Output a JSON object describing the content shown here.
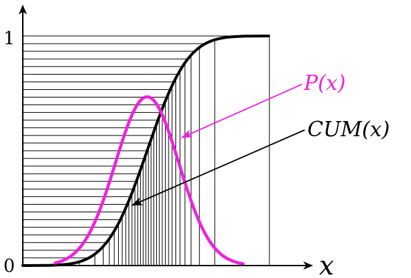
{
  "labels": {
    "y_top": "1",
    "y_bottom": "0",
    "x_axis": "x",
    "pdf": "P(x)",
    "cdf": "CUM(x)"
  },
  "colors": {
    "pdf_curve": "#ee22dd",
    "cdf_curve": "#000000",
    "axis": "#000000",
    "grid": "#000000"
  },
  "curves": {
    "pdf": {
      "name": "P(x)",
      "shape": "gaussian-bell"
    },
    "cdf": {
      "name": "CUM(x)",
      "shape": "sigmoid",
      "min": 0,
      "max": 1
    }
  },
  "grid": {
    "horizontal_lines": 30,
    "vertical_lines": 30
  }
}
